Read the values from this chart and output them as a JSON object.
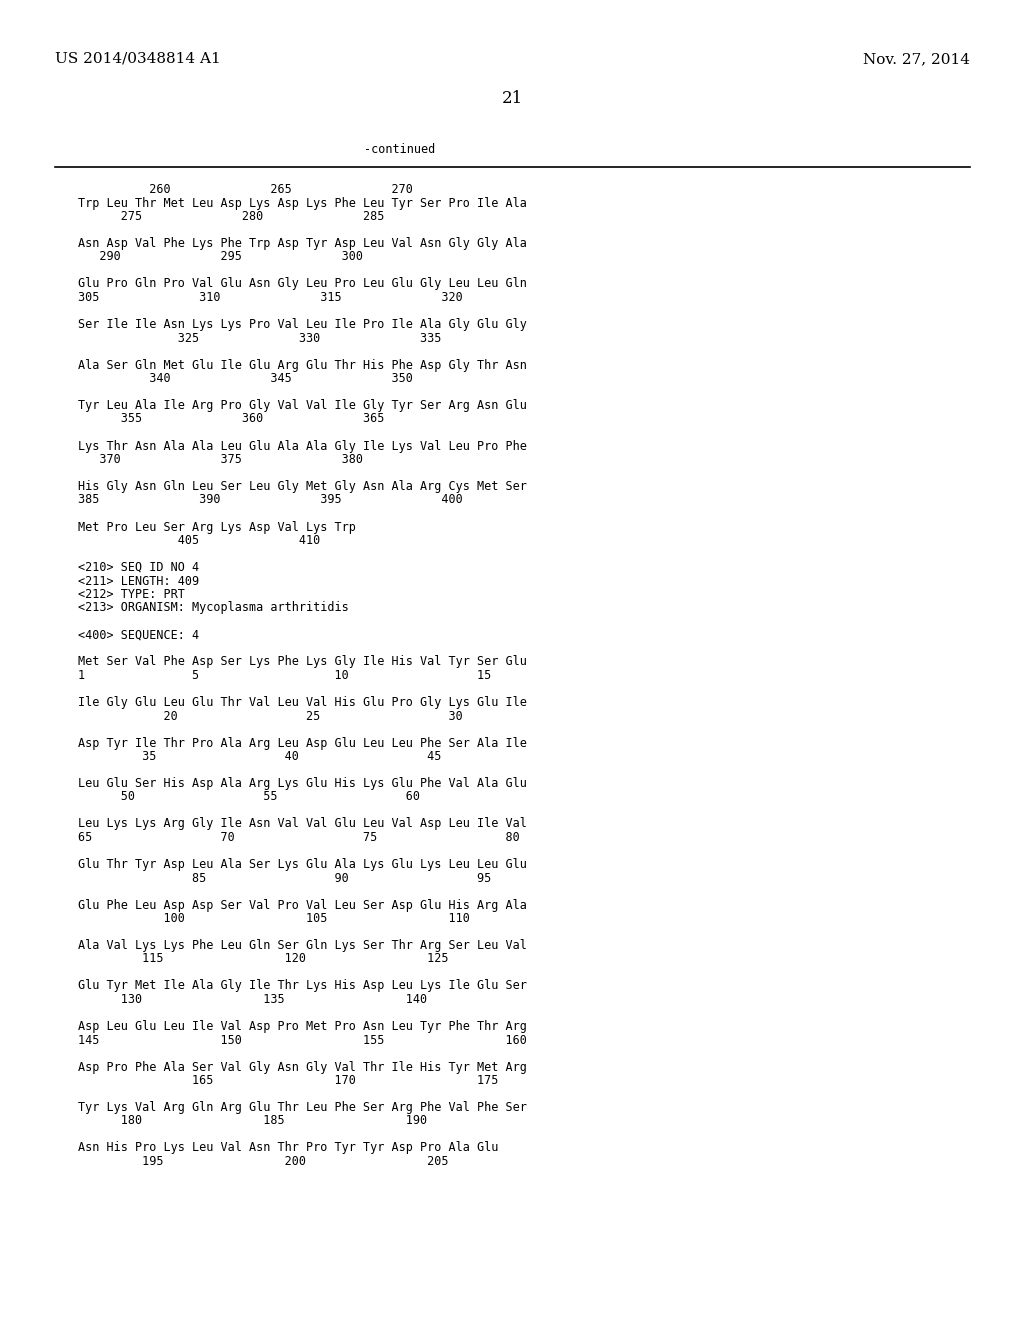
{
  "header_left": "US 2014/0348814 A1",
  "header_right": "Nov. 27, 2014",
  "page_number": "21",
  "continued_label": "-continued",
  "background_color": "#ffffff",
  "text_color": "#000000",
  "font_size": 8.5,
  "mono_font": "DejaVu Sans Mono",
  "header_font_size": 11,
  "page_num_font_size": 12,
  "lines": [
    "          260              265              270",
    "Trp Leu Thr Met Leu Asp Lys Asp Lys Phe Leu Tyr Ser Pro Ile Ala",
    "      275              280              285",
    "",
    "Asn Asp Val Phe Lys Phe Trp Asp Tyr Asp Leu Val Asn Gly Gly Ala",
    "   290              295              300",
    "",
    "Glu Pro Gln Pro Val Glu Asn Gly Leu Pro Leu Glu Gly Leu Leu Gln",
    "305              310              315              320",
    "",
    "Ser Ile Ile Asn Lys Lys Pro Val Leu Ile Pro Ile Ala Gly Glu Gly",
    "              325              330              335",
    "",
    "Ala Ser Gln Met Glu Ile Glu Arg Glu Thr His Phe Asp Gly Thr Asn",
    "          340              345              350",
    "",
    "Tyr Leu Ala Ile Arg Pro Gly Val Val Ile Gly Tyr Ser Arg Asn Glu",
    "      355              360              365",
    "",
    "Lys Thr Asn Ala Ala Leu Glu Ala Ala Gly Ile Lys Val Leu Pro Phe",
    "   370              375              380",
    "",
    "His Gly Asn Gln Leu Ser Leu Gly Met Gly Asn Ala Arg Cys Met Ser",
    "385              390              395              400",
    "",
    "Met Pro Leu Ser Arg Lys Asp Val Lys Trp",
    "              405              410",
    "",
    "<210> SEQ ID NO 4",
    "<211> LENGTH: 409",
    "<212> TYPE: PRT",
    "<213> ORGANISM: Mycoplasma arthritidis",
    "",
    "<400> SEQUENCE: 4",
    "",
    "Met Ser Val Phe Asp Ser Lys Phe Lys Gly Ile His Val Tyr Ser Glu",
    "1               5                   10                  15",
    "",
    "Ile Gly Glu Leu Glu Thr Val Leu Val His Glu Pro Gly Lys Glu Ile",
    "            20                  25                  30",
    "",
    "Asp Tyr Ile Thr Pro Ala Arg Leu Asp Glu Leu Leu Phe Ser Ala Ile",
    "         35                  40                  45",
    "",
    "Leu Glu Ser His Asp Ala Arg Lys Glu His Lys Glu Phe Val Ala Glu",
    "      50                  55                  60",
    "",
    "Leu Lys Lys Arg Gly Ile Asn Val Val Glu Leu Val Asp Leu Ile Val",
    "65                  70                  75                  80",
    "",
    "Glu Thr Tyr Asp Leu Ala Ser Lys Glu Ala Lys Glu Lys Leu Leu Glu",
    "                85                  90                  95",
    "",
    "Glu Phe Leu Asp Asp Ser Val Pro Val Leu Ser Asp Glu His Arg Ala",
    "            100                 105                 110",
    "",
    "Ala Val Lys Lys Phe Leu Gln Ser Gln Lys Ser Thr Arg Ser Leu Val",
    "         115                 120                 125",
    "",
    "Glu Tyr Met Ile Ala Gly Ile Thr Lys His Asp Leu Lys Ile Glu Ser",
    "      130                 135                 140",
    "",
    "Asp Leu Glu Leu Ile Val Asp Pro Met Pro Asn Leu Tyr Phe Thr Arg",
    "145                 150                 155                 160",
    "",
    "Asp Pro Phe Ala Ser Val Gly Asn Gly Val Thr Ile His Tyr Met Arg",
    "                165                 170                 175",
    "",
    "Tyr Lys Val Arg Gln Arg Glu Thr Leu Phe Ser Arg Phe Val Phe Ser",
    "      180                 185                 190",
    "",
    "Asn His Pro Lys Leu Val Asn Thr Pro Tyr Tyr Asp Pro Ala Glu",
    "         195                 200                 205"
  ]
}
